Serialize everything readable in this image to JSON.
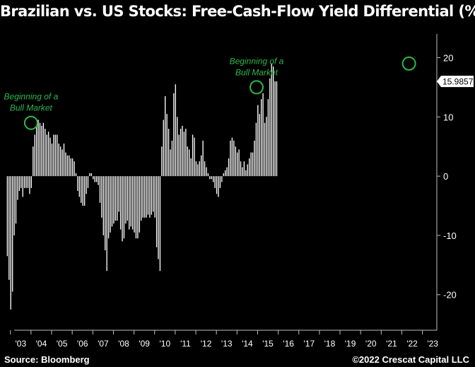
{
  "title": "Brazilian vs. US Stocks: Free-Cash-Flow Yield Differential (%)",
  "source": "Source: Bloomberg",
  "copyright": "©2022 Crescat Capital LLC",
  "colors": {
    "background": "#000000",
    "bars": "#ffffff",
    "annotation": "#2db84c",
    "axis": "#bfbfbf"
  },
  "chart_data": {
    "type": "bar",
    "title": "Brazilian vs. US Stocks: Free-Cash-Flow Yield Differential (%)",
    "xlabel": "",
    "ylabel": "",
    "ylim": [
      -26,
      24
    ],
    "y_ticks": [
      20,
      10,
      0,
      -10,
      -20
    ],
    "grid": false,
    "legend": "none",
    "y_axis_side": "right",
    "x_ticks": [
      "'03",
      "'04",
      "'05",
      "'06",
      "'07",
      "'08",
      "'09",
      "'10",
      "'11",
      "'12",
      "'13",
      "'14",
      "'15",
      "'16",
      "'17",
      "'18",
      "'19",
      "'20",
      "'21",
      "'22",
      "'23"
    ],
    "x_start_year": 2002.85,
    "x_step_years": 0.0833,
    "values": [
      -13.5,
      -17.5,
      -22.5,
      -19.5,
      -10,
      -8,
      -4,
      -2.5,
      -2,
      -3.5,
      -2,
      -2,
      -2,
      -3,
      -2,
      5,
      7,
      8.5,
      9.5,
      9,
      8.5,
      9,
      8,
      7,
      7.5,
      6.5,
      5.5,
      7,
      7,
      7,
      5.5,
      5,
      4.5,
      5.5,
      4,
      3.5,
      3.5,
      3,
      3,
      2.5,
      0.5,
      -2.5,
      -3.5,
      -4.5,
      -5,
      -5,
      -3,
      -2,
      0.5,
      0.5,
      -0.5,
      -1,
      -1,
      -1.5,
      -4.5,
      -7,
      -10,
      -12.5,
      -16,
      -10.5,
      -9.5,
      -8.5,
      -8,
      -7.5,
      -7.5,
      -6,
      -9,
      -11,
      -10.5,
      -8,
      -7.5,
      -9,
      -8.5,
      -9,
      -9.5,
      -10.5,
      -10.5,
      -9.5,
      -7.5,
      -7,
      -7,
      -7,
      -6.5,
      -7,
      -6.5,
      -6,
      -7,
      -12,
      -14,
      -16,
      5,
      9.5,
      13.5,
      10.5,
      8,
      4.5,
      6,
      14,
      15.5,
      10,
      7,
      8,
      8.5,
      7.5,
      8,
      5,
      4.5,
      3,
      7,
      6.5,
      2.5,
      2,
      2.5,
      3.5,
      6,
      2.5,
      1.5,
      0.5,
      -0.5,
      -0.5,
      -1,
      -2,
      -3,
      -3.5,
      -2,
      -1,
      0.5,
      1,
      1.5,
      3,
      6,
      6.5,
      6,
      5,
      4,
      4.5,
      2.5,
      1.5,
      2.5,
      1,
      2,
      3,
      4,
      4,
      6,
      9,
      12,
      10.5,
      13,
      14,
      9,
      10,
      13,
      16.5,
      19,
      18.5,
      16,
      15.9857
    ],
    "annotations": [
      {
        "text_lines": [
          "Beginning of a",
          "Bull Market"
        ],
        "x": 2004.0,
        "y": 9
      },
      {
        "text_lines": [
          "Beginning of a",
          "Bull Market"
        ],
        "x": 2014.95,
        "y": 15
      },
      {
        "text": "",
        "x": 2022.35,
        "y": 19
      }
    ],
    "last_value_label": "15.9857"
  }
}
